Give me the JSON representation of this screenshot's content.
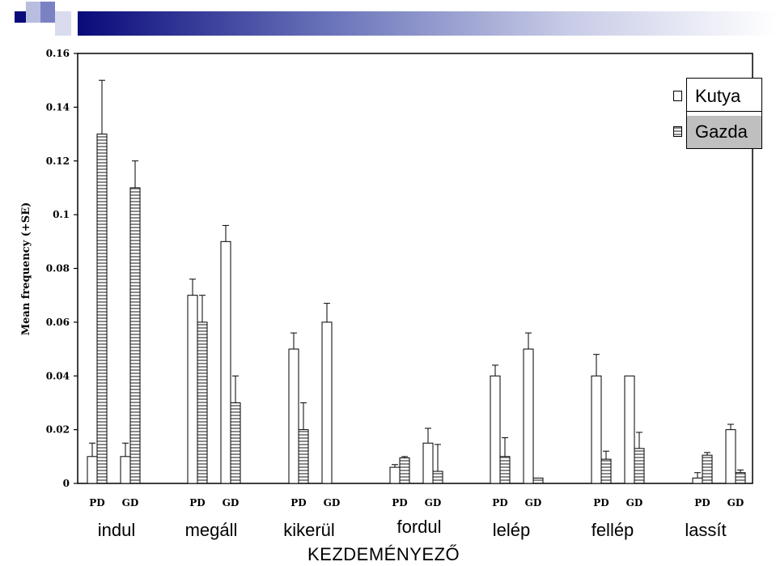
{
  "chart_data": {
    "type": "bar",
    "ylabel": "Mean frequency (+SE)",
    "xlabel": "KEZDEMÉNYEZŐ",
    "ylim": [
      0,
      0.16
    ],
    "yticks": [
      "0",
      "0.02",
      "0.04",
      "0.06",
      "0.08",
      "0.1",
      "0.12",
      "0.14",
      "0.16"
    ],
    "subcategory_labels": [
      "PD",
      "GD"
    ],
    "groups": [
      {
        "label": "indul",
        "PD": {
          "Kutya": 0.01,
          "Gazda": 0.13,
          "Kutya_se": 0.005,
          "Gazda_se": 0.02
        },
        "GD": {
          "Kutya": 0.01,
          "Gazda": 0.11,
          "Kutya_se": 0.005,
          "Gazda_se": 0.01
        }
      },
      {
        "label": "megáll",
        "PD": {
          "Kutya": 0.07,
          "Gazda": 0.06,
          "Kutya_se": 0.006,
          "Gazda_se": 0.01
        },
        "GD": {
          "Kutya": 0.09,
          "Gazda": 0.03,
          "Kutya_se": 0.006,
          "Gazda_se": 0.01
        }
      },
      {
        "label": "kikerül",
        "PD": {
          "Kutya": 0.05,
          "Gazda": 0.02,
          "Kutya_se": 0.006,
          "Gazda_se": 0.01
        },
        "GD": {
          "Kutya": 0.06,
          "Gazda": 0,
          "Kutya_se": 0.007,
          "Gazda_se": 0
        }
      },
      {
        "label": "fordul",
        "PD": {
          "Kutya": 0.006,
          "Gazda": 0.0095,
          "Kutya_se": 0.001,
          "Gazda_se": 0.0005
        },
        "GD": {
          "Kutya": 0.015,
          "Gazda": 0.0045,
          "Kutya_se": 0.0055,
          "Gazda_se": 0.01
        }
      },
      {
        "label": "lelép",
        "PD": {
          "Kutya": 0.04,
          "Gazda": 0.01,
          "Kutya_se": 0.004,
          "Gazda_se": 0.007
        },
        "GD": {
          "Kutya": 0.05,
          "Gazda": 0.002,
          "Kutya_se": 0.006,
          "Gazda_se": 0
        }
      },
      {
        "label": "fellép",
        "PD": {
          "Kutya": 0.04,
          "Gazda": 0.009,
          "Kutya_se": 0.008,
          "Gazda_se": 0.003
        },
        "GD": {
          "Kutya": 0.04,
          "Gazda": 0.013,
          "Kutya_se": 0,
          "Gazda_se": 0.006
        }
      },
      {
        "label": "lassít",
        "PD": {
          "Kutya": 0.002,
          "Gazda": 0.0105,
          "Kutya_se": 0.002,
          "Gazda_se": 0.001
        },
        "GD": {
          "Kutya": 0.02,
          "Gazda": 0.004,
          "Kutya_se": 0.002,
          "Gazda_se": 0.001
        }
      }
    ],
    "series": [
      {
        "name": "Kutya",
        "fill": "open"
      },
      {
        "name": "Gazda",
        "fill": "horizontal-stripes"
      }
    ],
    "legend_position": "top-right",
    "grid": false
  },
  "colors": {
    "title_bar_dark": "#0a0a7a",
    "title_bar_light": "#c7cbe6",
    "legend_gazda_bg": "#bfbfbf"
  }
}
